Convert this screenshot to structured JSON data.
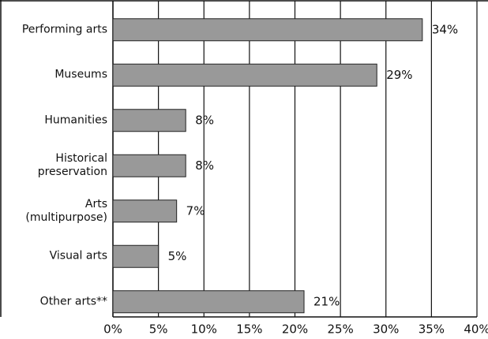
{
  "chart_data": {
    "type": "bar",
    "orientation": "horizontal",
    "categories": [
      "Performing arts",
      "Museums",
      "Humanities",
      "Historical\npreservation",
      "Arts\n(multipurpose)",
      "Visual arts",
      "Other arts**"
    ],
    "values": [
      34,
      29,
      8,
      8,
      7,
      5,
      21
    ],
    "value_labels": [
      "34%",
      "29%",
      "8%",
      "8%",
      "7%",
      "5%",
      "21%"
    ],
    "color": "#999999",
    "xlim": [
      0,
      40
    ],
    "xticks": [
      {
        "value": 0,
        "label": "0%"
      },
      {
        "value": 5,
        "label": "5%"
      },
      {
        "value": 10,
        "label": "10%"
      },
      {
        "value": 15,
        "label": "15%"
      },
      {
        "value": 20,
        "label": "20%"
      },
      {
        "value": 25,
        "label": "25%"
      },
      {
        "value": 30,
        "label": "30%"
      },
      {
        "value": 35,
        "label": "35%"
      },
      {
        "value": 40,
        "label": "40%"
      }
    ],
    "grid": true
  }
}
